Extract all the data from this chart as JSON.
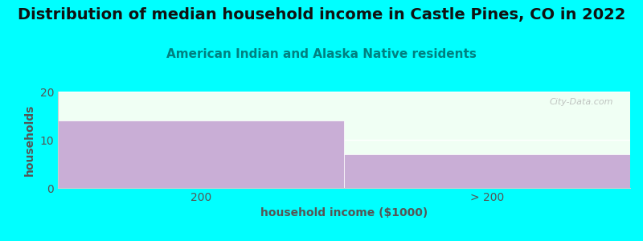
{
  "title": "Distribution of median household income in Castle Pines, CO in 2022",
  "subtitle": "American Indian and Alaska Native residents",
  "xlabel": "household income ($1000)",
  "ylabel": "households",
  "categories": [
    "200",
    "> 200"
  ],
  "bar_values": [
    14,
    7
  ],
  "ylim": [
    0,
    20
  ],
  "yticks": [
    0,
    10,
    20
  ],
  "bar_color": "#c9aed6",
  "bar_edge_color": "#ffffff",
  "background_color": "#00ffff",
  "plot_bg_color": "#f0fff4",
  "title_fontsize": 14,
  "subtitle_fontsize": 11,
  "subtitle_color": "#008080",
  "axis_label_color": "#555555",
  "tick_color": "#555555",
  "watermark": "City-Data.com",
  "bar_width": 1.0
}
